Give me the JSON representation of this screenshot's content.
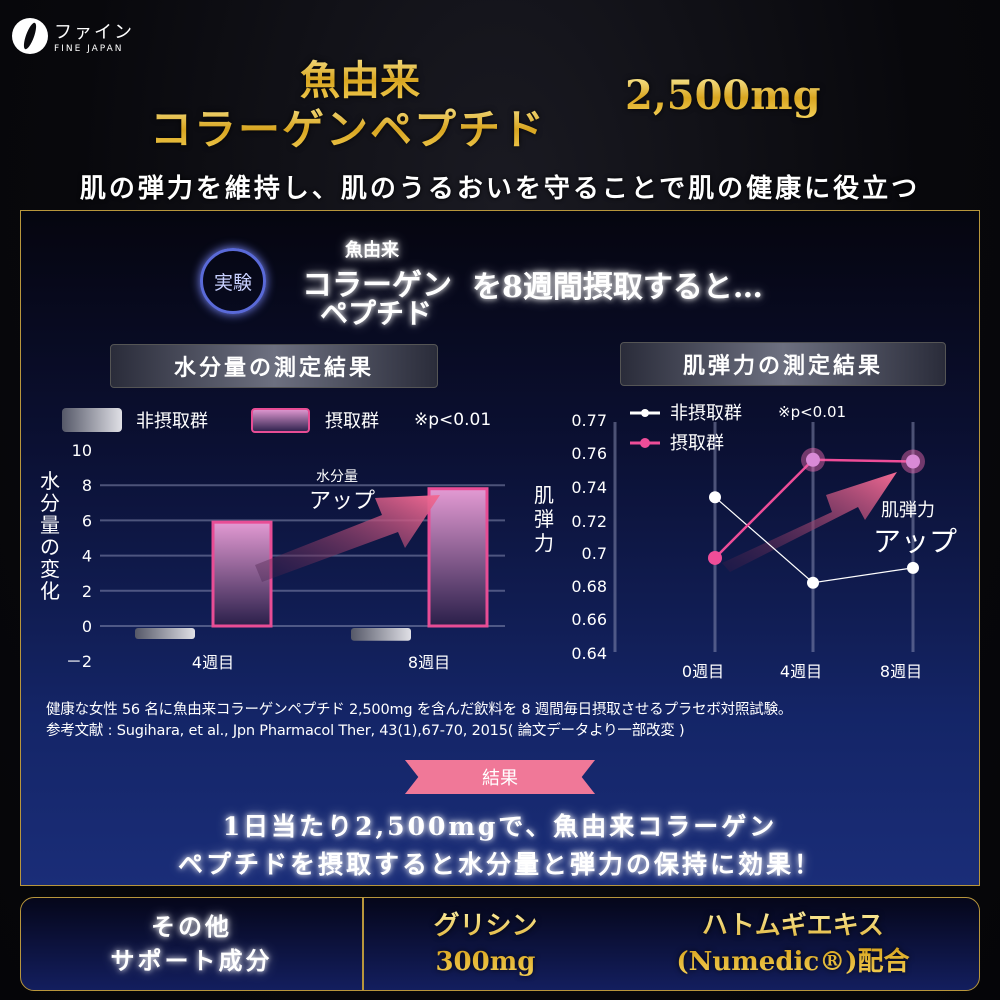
{
  "brand": {
    "name_jp": "ファイン",
    "name_en": "FINE JAPAN"
  },
  "headline": {
    "line1": "魚由来",
    "line2": "コラーゲンペプチド",
    "amount": "2,500mg"
  },
  "subtitle": "肌の弾力を維持し、肌のうるおいを守ることで肌の健康に役立つ",
  "experiment": {
    "badge": "実験",
    "small": "魚由来",
    "main1": "コラーゲン",
    "main2": "ペプチド",
    "rest": "を8週間摂取すると…"
  },
  "chart_data": [
    {
      "type": "bar",
      "title": "水分量の測定結果",
      "ylabel": "水分量の変化",
      "categories": [
        "4週目",
        "8週目"
      ],
      "ylim": [
        -2,
        10
      ],
      "yticks": [
        "10",
        "8",
        "6",
        "4",
        "2",
        "0",
        "－2"
      ],
      "ytick_values": [
        10,
        8,
        6,
        4,
        2,
        0,
        -2
      ],
      "grid": true,
      "series": [
        {
          "name": "非摂取群",
          "values": [
            -0.4,
            -0.5
          ],
          "color": "#c8c9d0"
        },
        {
          "name": "摂取群",
          "values": [
            5.9,
            7.8
          ],
          "color": "#e84d95"
        }
      ],
      "legend_note": "※p<0.01",
      "annotation": {
        "small": "水分量",
        "large": "アップ"
      }
    },
    {
      "type": "line",
      "title": "肌弾力の測定結果",
      "ylabel": "肌弾力",
      "categories": [
        "0週目",
        "4週目",
        "8週目"
      ],
      "yticks": [
        "0.77",
        "0.76",
        "0.74",
        "0.72",
        "0.7",
        "0.68",
        "0.66",
        "0.64"
      ],
      "ytick_values": [
        0.77,
        0.76,
        0.74,
        0.72,
        0.7,
        0.68,
        0.66,
        0.64
      ],
      "series": [
        {
          "name": "非摂取群",
          "values": [
            0.734,
            0.682,
            0.691
          ],
          "color": "#ffffff"
        },
        {
          "name": "摂取群",
          "values": [
            0.697,
            0.756,
            0.755
          ],
          "color": "#ee4d98"
        }
      ],
      "legend_note": "※p<0.01",
      "annotation": {
        "small": "肌弾力",
        "large": "アップ"
      }
    }
  ],
  "footnote": {
    "line1": "健康な女性 56 名に魚由来コラーゲンペプチド 2,500mg を含んだ飲料を 8 週間毎日摂取させるプラセボ対照試験。",
    "line2": "参考文献 : Sugihara, et al., Jpn Pharmacol Ther, 43(1),67-70, 2015( 論文データより一部改変 )"
  },
  "result": {
    "label": "結果",
    "line1": "1日当たり2,500mgで、魚由来コラーゲン",
    "line2": "ペプチドを摂取すると水分量と弾力の保持に効果！"
  },
  "support": {
    "title1": "その他",
    "title2": "サポート成分",
    "item1_name": "グリシン",
    "item1_amount": "300mg",
    "item2_name": "ハトムギエキス",
    "item2_detail": "(Numedic®)配合"
  }
}
